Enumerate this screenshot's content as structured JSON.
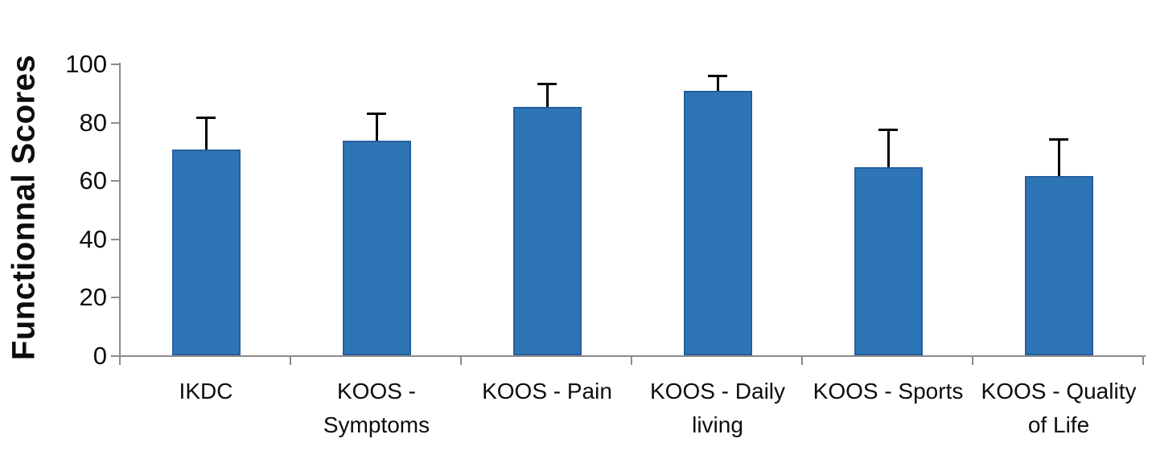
{
  "chart_data": {
    "type": "bar",
    "title": "",
    "ylabel": "Functionnal Scores",
    "xlabel": "",
    "categories": [
      "IKDC",
      "KOOS - Symptoms",
      "KOOS - Pain",
      "KOOS - Daily living",
      "KOOS - Sports",
      "KOOS - Quality of Life"
    ],
    "category_label_lines": [
      [
        "IKDC"
      ],
      [
        "KOOS -",
        "Symptoms"
      ],
      [
        "KOOS - Pain"
      ],
      [
        "KOOS - Daily",
        "living"
      ],
      [
        "KOOS - Sports"
      ],
      [
        "KOOS - Quality",
        "of Life"
      ]
    ],
    "values": [
      70.5,
      73.5,
      85,
      90.5,
      64.5,
      61.5
    ],
    "errors_upper": [
      11,
      9.5,
      8,
      5.5,
      13,
      12.5
    ],
    "ylim": [
      0,
      100
    ],
    "yticks": [
      0,
      20,
      40,
      60,
      80,
      100
    ],
    "grid": false,
    "legend": false,
    "bar_color": "#2E75B6",
    "bar_border_color": "#235F9E",
    "error_bar_color": "#000000",
    "axis_color": "#8C8C8C",
    "text_color": "#0D0D0D"
  }
}
